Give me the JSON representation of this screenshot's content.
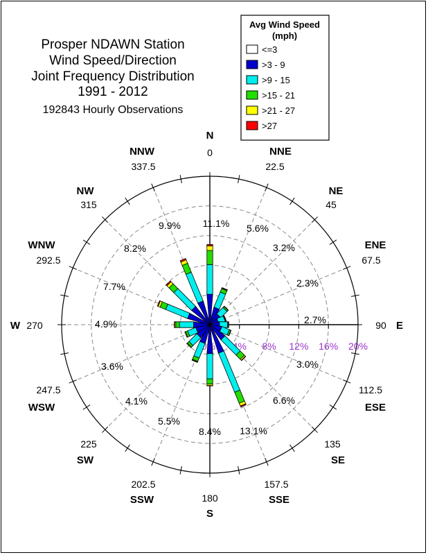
{
  "title_lines": [
    "Prosper NDAWN Station",
    "Wind Speed/Direction",
    "Joint Frequency Distribution",
    "1991 - 2012"
  ],
  "subtitle": "192843 Hourly Observations",
  "legend": {
    "title_lines": [
      "Avg Wind Speed",
      "(mph)"
    ],
    "entries": [
      {
        "label": "<=3",
        "color": "#ffffff"
      },
      {
        "label": ">3 - 9",
        "color": "#0000cc"
      },
      {
        "label": ">9 - 15",
        "color": "#00eeee"
      },
      {
        "label": ">15 - 21",
        "color": "#22dd00"
      },
      {
        "label": ">21 - 27",
        "color": "#ffff00"
      },
      {
        "label": ">27",
        "color": "#ff0000"
      }
    ]
  },
  "compass": [
    {
      "name": "N",
      "deg": "0",
      "angle": 0,
      "pct": "11.1%"
    },
    {
      "name": "NNE",
      "deg": "22.5",
      "angle": 22.5,
      "pct": "5.6%"
    },
    {
      "name": "NE",
      "deg": "45",
      "angle": 45,
      "pct": "3.2%"
    },
    {
      "name": "ENE",
      "deg": "67.5",
      "angle": 67.5,
      "pct": "2.3%"
    },
    {
      "name": "E",
      "deg": "90",
      "angle": 90,
      "pct": "2.7%"
    },
    {
      "name": "ESE",
      "deg": "112.5",
      "angle": 112.5,
      "pct": "3.0%"
    },
    {
      "name": "SE",
      "deg": "135",
      "angle": 135,
      "pct": "6.6%"
    },
    {
      "name": "SSE",
      "deg": "157.5",
      "angle": 157.5,
      "pct": "13.1%"
    },
    {
      "name": "S",
      "deg": "180",
      "angle": 180,
      "pct": "8.4%"
    },
    {
      "name": "SSW",
      "deg": "202.5",
      "angle": 202.5,
      "pct": "5.5%"
    },
    {
      "name": "SW",
      "deg": "225",
      "angle": 225,
      "pct": "4.1%"
    },
    {
      "name": "WSW",
      "deg": "247.5",
      "angle": 247.5,
      "pct": "3.6%"
    },
    {
      "name": "W",
      "deg": "270",
      "angle": 270,
      "pct": "4.9%"
    },
    {
      "name": "WNW",
      "deg": "292.5",
      "angle": 292.5,
      "pct": "7.7%"
    },
    {
      "name": "NW",
      "deg": "315",
      "angle": 315,
      "pct": "8.2%"
    },
    {
      "name": "NNW",
      "deg": "337.5",
      "angle": 337.5,
      "pct": "9.9%"
    }
  ],
  "chart_data": {
    "type": "wind-rose",
    "radial_max": 20,
    "radial_ticks": [
      4,
      8,
      12,
      16,
      20
    ],
    "radial_tick_labels": [
      "0%",
      "4%",
      "8%",
      "12%",
      "16%",
      "20%"
    ],
    "directions": [
      "N",
      "NNE",
      "NE",
      "ENE",
      "E",
      "ESE",
      "SE",
      "SSE",
      "S",
      "SSW",
      "SW",
      "WSW",
      "W",
      "WNW",
      "NW",
      "NNW"
    ],
    "angles": [
      0,
      22.5,
      45,
      67.5,
      90,
      112.5,
      135,
      157.5,
      180,
      202.5,
      225,
      247.5,
      270,
      292.5,
      315,
      337.5
    ],
    "series": [
      {
        "name": ">3 - 9",
        "values": [
          4.1,
          2.4,
          1.7,
          1.2,
          1.3,
          1.6,
          2.5,
          4.0,
          3.9,
          2.6,
          2.1,
          1.9,
          2.2,
          3.1,
          3.1,
          3.3
        ]
      },
      {
        "name": ">9 - 15",
        "values": [
          4.0,
          2.2,
          1.2,
          0.9,
          1.1,
          1.1,
          2.9,
          5.7,
          3.4,
          2.1,
          1.5,
          1.2,
          1.9,
          3.2,
          3.4,
          4.2
        ]
      },
      {
        "name": ">15 - 21",
        "values": [
          1.9,
          0.5,
          0.2,
          0.1,
          0.1,
          0.2,
          0.8,
          1.6,
          0.7,
          0.5,
          0.3,
          0.3,
          0.5,
          0.8,
          0.9,
          1.3
        ]
      },
      {
        "name": ">21 - 27",
        "values": [
          0.6,
          0.1,
          0.05,
          0.05,
          0.05,
          0.05,
          0.2,
          0.4,
          0.2,
          0.1,
          0.1,
          0.1,
          0.15,
          0.3,
          0.4,
          0.5
        ]
      },
      {
        "name": ">27",
        "values": [
          0.2,
          0.05,
          0.0,
          0.0,
          0.0,
          0.0,
          0.05,
          0.15,
          0.05,
          0.05,
          0.0,
          0.0,
          0.05,
          0.1,
          0.15,
          0.2
        ]
      }
    ],
    "grid": true
  }
}
